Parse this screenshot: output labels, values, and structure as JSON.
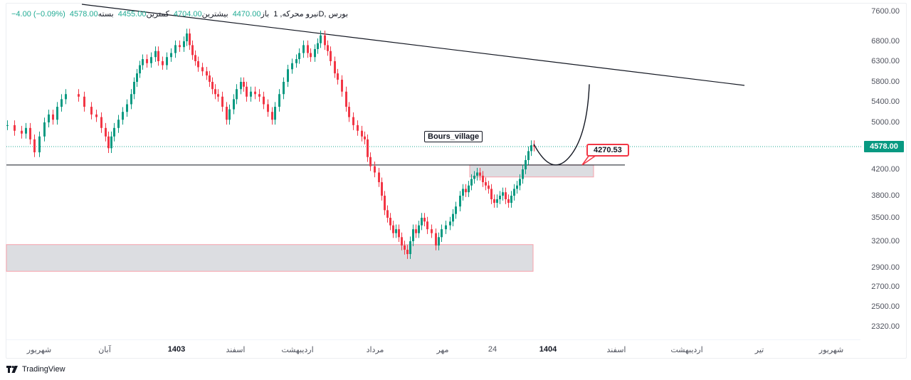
{
  "legend": {
    "symbol": "نیرو محرکه",
    "interval": "1",
    "timeframe": "D",
    "exchange": "بورس",
    "open_label": "باز",
    "open": "4470.00",
    "high_label": "بیشترین",
    "high": "4704.00",
    "low_label": "کمترین",
    "low": "4455.00",
    "close_label": "بسته",
    "close": "4578.00",
    "change": "−4.00 (−0.09%)"
  },
  "brand": {
    "name": "TradingView",
    "logo": "tradingview-logo-icon"
  },
  "colors": {
    "up": "#089981",
    "down": "#f23645",
    "zone_fill": "#dcdde1",
    "zone_border": "#f7a1ab",
    "trendline": "#131722",
    "last_price_line": "#22ab94"
  },
  "chart_data": {
    "type": "candlestick",
    "title": "نیرو محرکه, 1D, بورس",
    "ylabel": "",
    "xlabel": "",
    "y_scale": "log",
    "ylim": [
      2250,
      7800
    ],
    "y_ticks": [
      "7600.00",
      "6800.00",
      "6300.00",
      "5800.00",
      "5400.00",
      "5000.00",
      "4200.00",
      "3800.00",
      "3500.00",
      "3200.00",
      "2900.00",
      "2700.00",
      "2500.00",
      "2320.00"
    ],
    "y_tick_positions": [
      [
        7600,
        16
      ],
      [
        6800,
        58
      ],
      [
        6300,
        86
      ],
      [
        5800,
        115
      ],
      [
        5400,
        143
      ],
      [
        5000,
        172
      ],
      [
        4578,
        206
      ],
      [
        4200,
        238
      ],
      [
        3800,
        275
      ],
      [
        3500,
        306
      ],
      [
        3200,
        339
      ],
      [
        2900,
        376
      ],
      [
        2700,
        403
      ],
      [
        2500,
        431
      ],
      [
        2320,
        459
      ]
    ],
    "x_ticks": [
      {
        "label": "شهریور",
        "x": 55,
        "bold": false
      },
      {
        "label": "آبان",
        "x": 147,
        "bold": false
      },
      {
        "label": "1403",
        "x": 248,
        "bold": true
      },
      {
        "label": "اسفند",
        "x": 331,
        "bold": false
      },
      {
        "label": "اردیبهشت",
        "x": 418,
        "bold": false
      },
      {
        "label": "مرداد",
        "x": 527,
        "bold": false
      },
      {
        "label": "مهر",
        "x": 622,
        "bold": false
      },
      {
        "label": "24",
        "x": 692,
        "bold": false
      },
      {
        "label": "1404",
        "x": 770,
        "bold": true
      },
      {
        "label": "اسفند",
        "x": 866,
        "bold": false
      },
      {
        "label": "اردیبهشت",
        "x": 965,
        "bold": false
      },
      {
        "label": "تیر",
        "x": 1067,
        "bold": false
      },
      {
        "label": "شهریور",
        "x": 1168,
        "bold": false
      }
    ],
    "last_price": "4578.00",
    "series": [
      {
        "name": "price",
        "points_x_close": [
          [
            10,
            4950
          ],
          [
            20,
            4850
          ],
          [
            30,
            4800
          ],
          [
            36,
            4900
          ],
          [
            42,
            4700
          ],
          [
            48,
            4480
          ],
          [
            55,
            4750
          ],
          [
            62,
            5000
          ],
          [
            68,
            5150
          ],
          [
            74,
            5050
          ],
          [
            80,
            5300
          ],
          [
            86,
            5450
          ],
          [
            92,
            5550
          ],
          [
            110,
            5500
          ],
          [
            118,
            5300
          ],
          [
            128,
            5150
          ],
          [
            135,
            5100
          ],
          [
            142,
            4900
          ],
          [
            148,
            4750
          ],
          [
            152,
            4550
          ],
          [
            156,
            4750
          ],
          [
            160,
            4900
          ],
          [
            166,
            5050
          ],
          [
            172,
            5200
          ],
          [
            178,
            5350
          ],
          [
            184,
            5550
          ],
          [
            188,
            5800
          ],
          [
            192,
            6000
          ],
          [
            196,
            6200
          ],
          [
            200,
            6350
          ],
          [
            206,
            6250
          ],
          [
            212,
            6400
          ],
          [
            218,
            6550
          ],
          [
            222,
            6300
          ],
          [
            228,
            6200
          ],
          [
            234,
            6400
          ],
          [
            240,
            6500
          ],
          [
            246,
            6700
          ],
          [
            252,
            6650
          ],
          [
            258,
            6800
          ],
          [
            262,
            7000
          ],
          [
            266,
            6700
          ],
          [
            270,
            6450
          ],
          [
            274,
            6300
          ],
          [
            278,
            6150
          ],
          [
            284,
            6050
          ],
          [
            290,
            5950
          ],
          [
            294,
            5800
          ],
          [
            298,
            5650
          ],
          [
            302,
            5550
          ],
          [
            306,
            5500
          ],
          [
            312,
            5300
          ],
          [
            318,
            5050
          ],
          [
            322,
            5250
          ],
          [
            328,
            5450
          ],
          [
            332,
            5650
          ],
          [
            338,
            5800
          ],
          [
            342,
            5700
          ],
          [
            346,
            5500
          ],
          [
            352,
            5600
          ],
          [
            358,
            5550
          ],
          [
            364,
            5500
          ],
          [
            370,
            5350
          ],
          [
            376,
            5200
          ],
          [
            382,
            5050
          ],
          [
            386,
            5300
          ],
          [
            392,
            5550
          ],
          [
            398,
            5800
          ],
          [
            404,
            6100
          ],
          [
            410,
            6250
          ],
          [
            416,
            6350
          ],
          [
            420,
            6500
          ],
          [
            426,
            6700
          ],
          [
            432,
            6500
          ],
          [
            436,
            6400
          ],
          [
            442,
            6600
          ],
          [
            446,
            6750
          ],
          [
            450,
            6950
          ],
          [
            456,
            6700
          ],
          [
            460,
            6550
          ],
          [
            464,
            6300
          ],
          [
            470,
            6000
          ],
          [
            474,
            5850
          ],
          [
            480,
            5600
          ],
          [
            486,
            5300
          ],
          [
            490,
            5100
          ],
          [
            496,
            4950
          ],
          [
            502,
            4850
          ],
          [
            508,
            4750
          ],
          [
            512,
            4700
          ],
          [
            516,
            4400
          ],
          [
            520,
            4250
          ],
          [
            526,
            4150
          ],
          [
            532,
            4000
          ],
          [
            536,
            3800
          ],
          [
            540,
            3600
          ],
          [
            544,
            3500
          ],
          [
            548,
            3400
          ],
          [
            552,
            3300
          ],
          [
            556,
            3350
          ],
          [
            560,
            3250
          ],
          [
            564,
            3150
          ],
          [
            568,
            3100
          ],
          [
            572,
            3050
          ],
          [
            576,
            3200
          ],
          [
            580,
            3350
          ],
          [
            584,
            3300
          ],
          [
            588,
            3400
          ],
          [
            592,
            3500
          ],
          [
            596,
            3450
          ],
          [
            600,
            3350
          ],
          [
            606,
            3300
          ],
          [
            612,
            3150
          ],
          [
            616,
            3250
          ],
          [
            620,
            3350
          ],
          [
            626,
            3400
          ],
          [
            632,
            3450
          ],
          [
            636,
            3550
          ],
          [
            640,
            3650
          ],
          [
            646,
            3800
          ],
          [
            650,
            3900
          ],
          [
            654,
            3850
          ],
          [
            658,
            3950
          ],
          [
            662,
            4050
          ],
          [
            666,
            4100
          ],
          [
            670,
            4150
          ],
          [
            674,
            4100
          ],
          [
            678,
            4000
          ],
          [
            682,
            3950
          ],
          [
            686,
            3900
          ],
          [
            690,
            3750
          ],
          [
            694,
            3700
          ],
          [
            698,
            3750
          ],
          [
            702,
            3800
          ],
          [
            706,
            3850
          ],
          [
            710,
            3750
          ],
          [
            714,
            3700
          ],
          [
            718,
            3800
          ],
          [
            722,
            3900
          ],
          [
            726,
            3950
          ],
          [
            730,
            4050
          ],
          [
            734,
            4200
          ],
          [
            738,
            4350
          ],
          [
            742,
            4500
          ],
          [
            746,
            4600
          ],
          [
            750,
            4578
          ]
        ]
      },
      {
        "name": "projection_curve",
        "points": [
          [
            750,
            4620
          ],
          [
            775,
            4270
          ],
          [
            800,
            4400
          ],
          [
            828,
            5750
          ]
        ]
      }
    ],
    "annotations": [
      {
        "type": "text",
        "label": "Bours_village",
        "x": 596,
        "y": 184
      },
      {
        "type": "price_callout",
        "label": "4270.53",
        "x": 824,
        "y": 202
      },
      {
        "type": "horizontal_line",
        "price": 4270.53,
        "x1": 9,
        "x2": 878
      },
      {
        "type": "trendline",
        "x1": 115,
        "y1": 6,
        "x2": 1046,
        "y2": 120
      },
      {
        "type": "zone",
        "label": "resistance/support zone",
        "x1": 660,
        "x2": 834,
        "price_top": 4270,
        "price_bottom": 4080
      },
      {
        "type": "zone",
        "label": "demand zone",
        "x1": 9,
        "x2": 749,
        "price_top": 3160,
        "price_bottom": 2860
      }
    ]
  }
}
